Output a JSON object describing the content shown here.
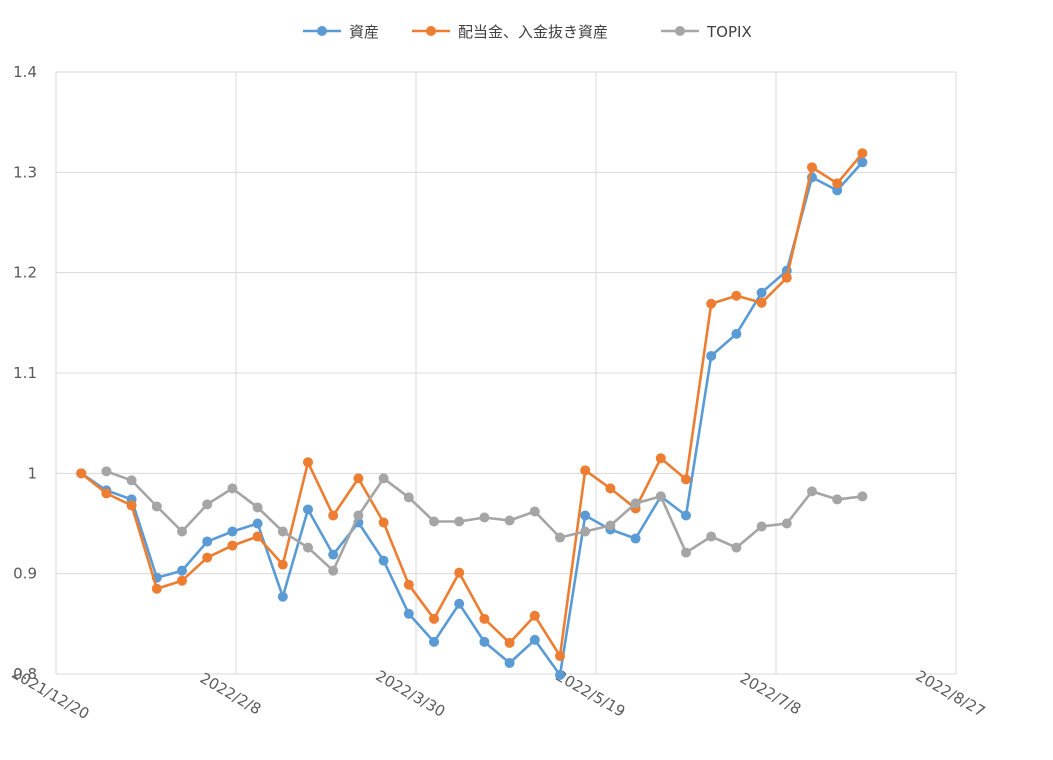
{
  "chart_data": {
    "type": "line",
    "title": "",
    "xlabel": "",
    "ylabel": "",
    "ylim": [
      0.8,
      1.4
    ],
    "y_ticks": [
      "0.8",
      "0.9",
      "1",
      "1.1",
      "1.2",
      "1.3",
      "1.4"
    ],
    "x_ticks": [
      "2021/12/20",
      "2022/2/8",
      "2022/3/30",
      "2022/5/19",
      "2022/7/8",
      "2022/8/27"
    ],
    "grid": true,
    "legend_position": "top",
    "x": [
      "2021/12/27",
      "2022/1/3",
      "2022/1/10",
      "2022/1/17",
      "2022/1/24",
      "2022/1/31",
      "2022/2/7",
      "2022/2/14",
      "2022/2/21",
      "2022/2/28",
      "2022/3/7",
      "2022/3/14",
      "2022/3/21",
      "2022/3/28",
      "2022/4/4",
      "2022/4/11",
      "2022/4/18",
      "2022/4/25",
      "2022/5/2",
      "2022/5/9",
      "2022/5/16",
      "2022/5/23",
      "2022/5/30",
      "2022/6/6",
      "2022/6/13",
      "2022/6/20",
      "2022/6/27",
      "2022/7/4",
      "2022/7/11",
      "2022/7/18",
      "2022/7/25",
      "2022/8/1",
      "2022/8/8",
      "2022/8/15"
    ],
    "series": [
      {
        "name": "資産",
        "color": "#5B9BD5",
        "values": [
          1.0,
          0.983,
          0.974,
          0.896,
          0.903,
          0.932,
          0.942,
          0.95,
          0.877,
          0.964,
          0.919,
          0.951,
          0.913,
          0.86,
          0.832,
          0.87,
          0.832,
          0.811,
          0.834,
          0.799,
          0.958,
          0.944,
          0.935,
          0.977,
          0.958,
          1.117,
          1.139,
          1.18,
          1.202,
          1.295,
          1.282,
          1.31,
          null,
          null
        ]
      },
      {
        "name": "配当金、入金抜き資産",
        "color": "#ED7D31",
        "values": [
          1.0,
          0.98,
          0.968,
          0.885,
          0.893,
          0.916,
          0.928,
          0.937,
          0.909,
          1.011,
          0.958,
          0.995,
          0.951,
          0.889,
          0.855,
          0.901,
          0.855,
          0.831,
          0.858,
          0.818,
          1.003,
          0.985,
          0.965,
          1.015,
          0.994,
          1.169,
          1.177,
          1.17,
          1.195,
          1.305,
          1.289,
          1.319,
          null,
          null
        ]
      },
      {
        "name": "TOPIX",
        "color": "#A5A5A5",
        "values": [
          null,
          1.002,
          0.993,
          0.967,
          0.942,
          0.969,
          0.985,
          0.966,
          0.942,
          0.926,
          0.903,
          0.958,
          0.995,
          0.976,
          0.952,
          0.952,
          0.956,
          0.953,
          0.962,
          0.936,
          0.942,
          0.948,
          0.97,
          0.977,
          0.921,
          0.937,
          0.926,
          0.947,
          0.95,
          0.982,
          0.974,
          0.977,
          null,
          null
        ]
      }
    ]
  }
}
